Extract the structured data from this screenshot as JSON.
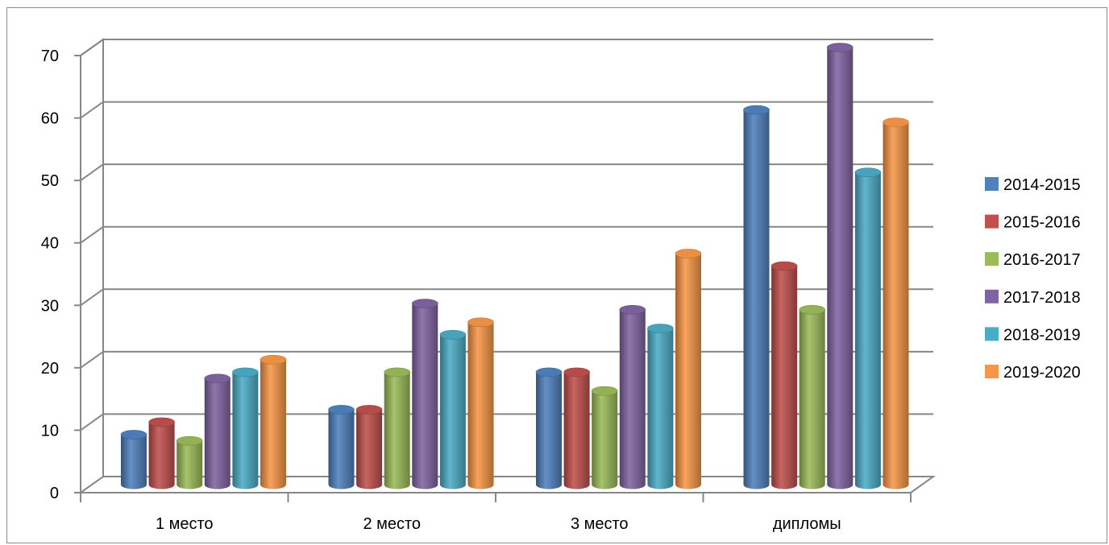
{
  "chart_data": {
    "type": "bar",
    "style": "3d-cylinder",
    "categories": [
      "1 место",
      "2 место",
      "3 место",
      "дипломы"
    ],
    "series": [
      {
        "name": "2014-2015",
        "color": "#4f81bd",
        "values": [
          8,
          12,
          18,
          60
        ]
      },
      {
        "name": "2015-2016",
        "color": "#c0504d",
        "values": [
          10,
          12,
          18,
          35
        ]
      },
      {
        "name": "2016-2017",
        "color": "#9bbb59",
        "values": [
          7,
          18,
          15,
          28
        ]
      },
      {
        "name": "2017-2018",
        "color": "#8064a2",
        "values": [
          17,
          29,
          28,
          70
        ]
      },
      {
        "name": "2018-2019",
        "color": "#4bacc6",
        "values": [
          18,
          24,
          25,
          50
        ]
      },
      {
        "name": "2019-2020",
        "color": "#f79646",
        "values": [
          20,
          26,
          37,
          58
        ]
      }
    ],
    "title": "",
    "xlabel": "",
    "ylabel": "",
    "ylim": [
      0,
      70
    ],
    "yticks": [
      "0",
      "10",
      "20",
      "30",
      "40",
      "50",
      "60",
      "70"
    ],
    "grid": true,
    "legend": "right"
  }
}
